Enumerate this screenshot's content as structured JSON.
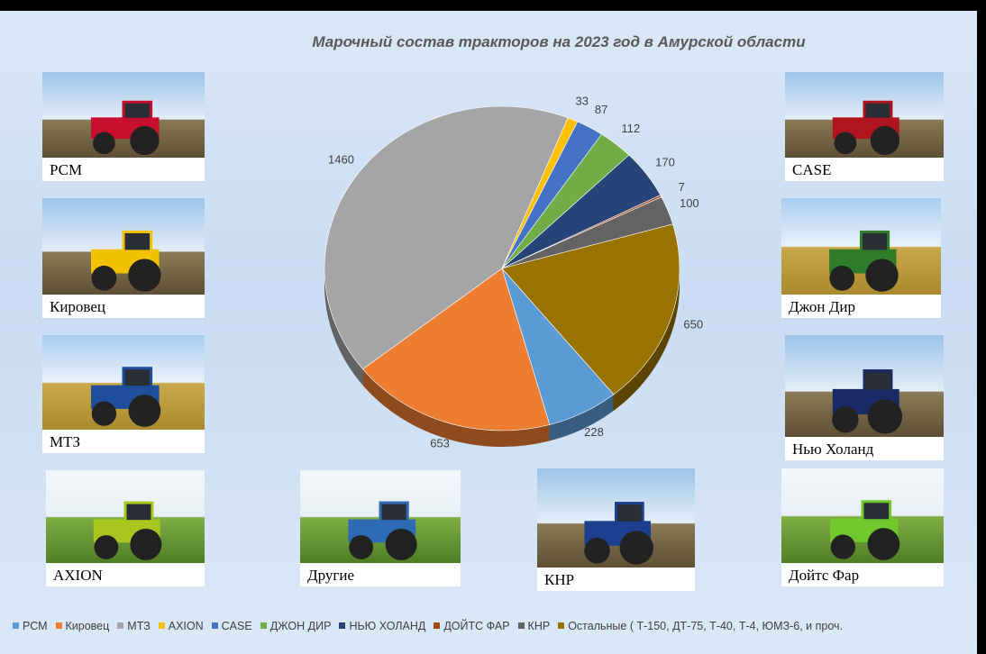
{
  "chart_data": {
    "type": "pie",
    "title": "Марочный состав тракторов на 2023 год в Амурской области",
    "categories": [
      "РСМ",
      "Кировец",
      "МТЗ",
      "AXION",
      "CASE",
      "ДЖОН ДИР",
      "НЬЮ ХОЛАНД",
      "ДОЙТС ФАР",
      "КНР",
      "Остальные ( Т-150, ДТ-75, Т-40, Т-4, ЮМЗ-6, и проч."
    ],
    "values": [
      228,
      653,
      1460,
      33,
      87,
      112,
      170,
      7,
      100,
      650
    ],
    "colors": [
      "#5b9bd5",
      "#ed7d31",
      "#a5a5a5",
      "#ffc000",
      "#4472c4",
      "#70ad47",
      "#264478",
      "#9e480e",
      "#636363",
      "#997300"
    ]
  },
  "photos": [
    "РСМ",
    "Кировец",
    "МТЗ",
    "AXION",
    "Другие",
    "КНР",
    "CASE",
    "Джон Дир",
    "Нью Холанд",
    "Дойтс Фар"
  ]
}
